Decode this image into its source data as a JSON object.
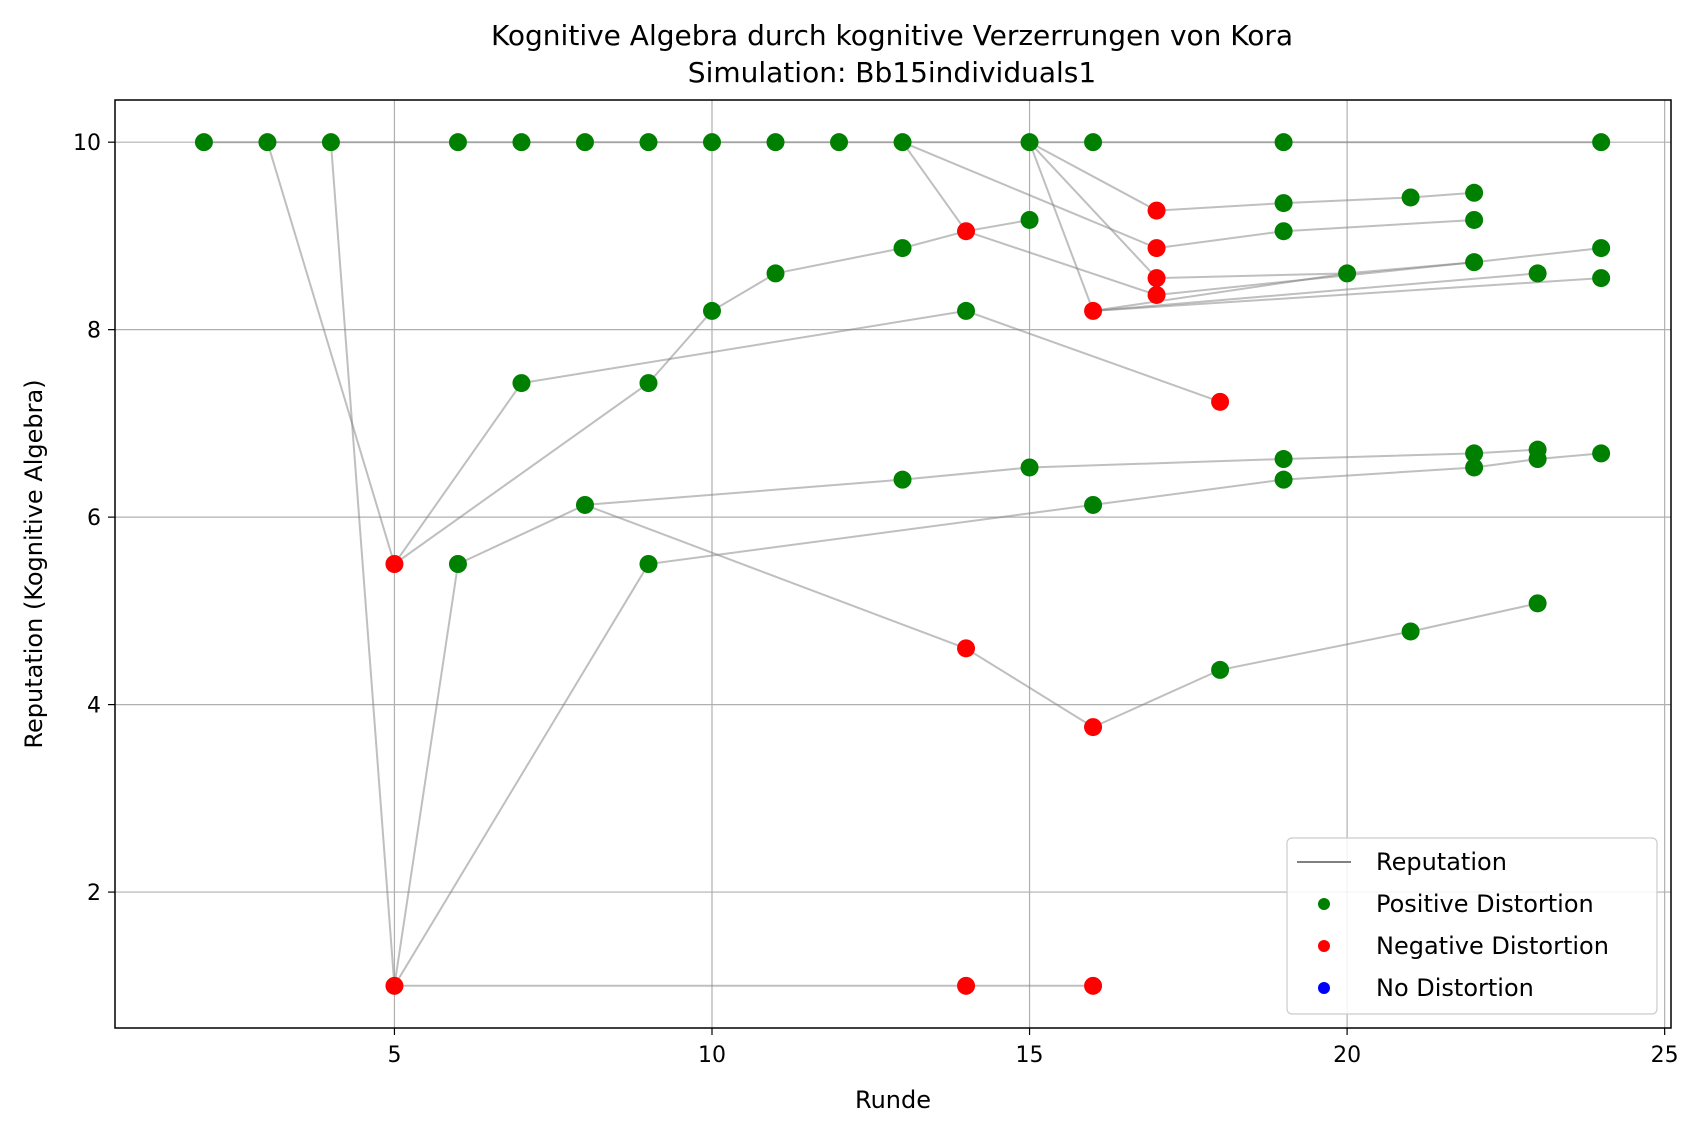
{
  "chart_data": {
    "type": "scatter",
    "title": "Kognitive Algebra durch kognitive Verzerrungen von Kora",
    "subtitle": "Simulation: Bb15individuals1",
    "xlabel": "Runde",
    "ylabel": "Reputation (Kognitive Algebra)",
    "xlim": [
      0.6,
      25.1
    ],
    "ylim": [
      0.55,
      10.45
    ],
    "xticks": [
      5,
      10,
      15,
      20,
      25
    ],
    "yticks": [
      2,
      4,
      6,
      8,
      10
    ],
    "grid": true,
    "legend_position": "lower right",
    "legend": [
      {
        "label": "Reputation",
        "kind": "line",
        "color": "#808080"
      },
      {
        "label": "Positive Distortion",
        "kind": "marker",
        "color": "#008000"
      },
      {
        "label": "Negative Distortion",
        "kind": "marker",
        "color": "#ff0000"
      },
      {
        "label": "No Distortion",
        "kind": "marker",
        "color": "#0000ff"
      }
    ],
    "colors": {
      "positive": "#008000",
      "negative": "#ff0000",
      "neutral": "#0000ff",
      "line": "#808080"
    },
    "series": [
      {
        "values": [
          [
            2,
            10.0
          ],
          [
            24,
            10.0
          ]
        ]
      },
      {
        "values": [
          [
            3,
            10.0
          ],
          [
            5,
            5.5
          ],
          [
            7,
            7.43
          ],
          [
            14,
            8.2
          ],
          [
            18,
            7.23
          ]
        ]
      },
      {
        "values": [
          [
            4,
            10.0
          ],
          [
            5,
            1.0
          ],
          [
            14,
            1.0
          ],
          [
            16,
            1.0
          ]
        ]
      },
      {
        "values": [
          [
            5,
            5.5
          ],
          [
            9,
            7.43
          ],
          [
            10,
            8.2
          ],
          [
            11,
            8.6
          ],
          [
            13,
            8.87
          ],
          [
            14,
            9.05
          ],
          [
            15,
            9.17
          ]
        ]
      },
      {
        "values": [
          [
            5,
            1.0
          ],
          [
            6,
            5.5
          ],
          [
            8,
            6.13
          ],
          [
            13,
            6.4
          ],
          [
            15,
            6.53
          ],
          [
            19,
            6.62
          ],
          [
            22,
            6.68
          ],
          [
            23,
            6.72
          ]
        ]
      },
      {
        "values": [
          [
            5,
            1.0
          ],
          [
            9,
            5.5
          ],
          [
            16,
            6.13
          ],
          [
            19,
            6.4
          ],
          [
            22,
            6.53
          ],
          [
            23,
            6.62
          ],
          [
            24,
            6.68
          ]
        ]
      },
      {
        "values": [
          [
            8,
            6.13
          ],
          [
            14,
            4.6
          ],
          [
            16,
            3.76
          ],
          [
            18,
            4.37
          ],
          [
            21,
            4.78
          ],
          [
            23,
            5.08
          ]
        ]
      },
      {
        "values": [
          [
            13,
            10.0
          ],
          [
            14,
            9.05
          ],
          [
            17,
            8.37
          ],
          [
            22,
            8.72
          ],
          [
            24,
            8.87
          ]
        ]
      },
      {
        "values": [
          [
            13,
            10.0
          ],
          [
            17,
            8.87
          ],
          [
            19,
            9.05
          ],
          [
            22,
            9.17
          ]
        ]
      },
      {
        "values": [
          [
            15,
            10.0
          ],
          [
            16,
            8.2
          ],
          [
            20,
            8.6
          ],
          [
            22,
            8.72
          ]
        ]
      },
      {
        "values": [
          [
            16,
            8.2
          ],
          [
            23,
            8.6
          ]
        ]
      },
      {
        "values": [
          [
            16,
            8.2
          ],
          [
            24,
            8.55
          ]
        ]
      },
      {
        "values": [
          [
            15,
            10.0
          ],
          [
            17,
            9.27
          ],
          [
            19,
            9.35
          ],
          [
            21,
            9.41
          ],
          [
            22,
            9.46
          ]
        ]
      },
      {
        "values": [
          [
            15,
            10.0
          ],
          [
            17,
            8.55
          ],
          [
            20,
            8.6
          ]
        ]
      }
    ],
    "points": [
      {
        "x": 2,
        "y": 10.0,
        "distortion": "positive"
      },
      {
        "x": 3,
        "y": 10.0,
        "distortion": "positive"
      },
      {
        "x": 4,
        "y": 10.0,
        "distortion": "positive"
      },
      {
        "x": 6,
        "y": 10.0,
        "distortion": "positive"
      },
      {
        "x": 7,
        "y": 10.0,
        "distortion": "positive"
      },
      {
        "x": 8,
        "y": 10.0,
        "distortion": "positive"
      },
      {
        "x": 9,
        "y": 10.0,
        "distortion": "positive"
      },
      {
        "x": 10,
        "y": 10.0,
        "distortion": "positive"
      },
      {
        "x": 11,
        "y": 10.0,
        "distortion": "positive"
      },
      {
        "x": 12,
        "y": 10.0,
        "distortion": "positive"
      },
      {
        "x": 13,
        "y": 10.0,
        "distortion": "positive"
      },
      {
        "x": 15,
        "y": 10.0,
        "distortion": "positive"
      },
      {
        "x": 16,
        "y": 10.0,
        "distortion": "positive"
      },
      {
        "x": 19,
        "y": 10.0,
        "distortion": "positive"
      },
      {
        "x": 24,
        "y": 10.0,
        "distortion": "positive"
      },
      {
        "x": 17,
        "y": 9.27,
        "distortion": "negative"
      },
      {
        "x": 19,
        "y": 9.35,
        "distortion": "positive"
      },
      {
        "x": 21,
        "y": 9.41,
        "distortion": "positive"
      },
      {
        "x": 22,
        "y": 9.46,
        "distortion": "positive"
      },
      {
        "x": 14,
        "y": 9.05,
        "distortion": "negative"
      },
      {
        "x": 15,
        "y": 9.17,
        "distortion": "positive"
      },
      {
        "x": 17,
        "y": 8.87,
        "distortion": "negative"
      },
      {
        "x": 19,
        "y": 9.05,
        "distortion": "positive"
      },
      {
        "x": 22,
        "y": 9.17,
        "distortion": "positive"
      },
      {
        "x": 13,
        "y": 8.87,
        "distortion": "positive"
      },
      {
        "x": 24,
        "y": 8.87,
        "distortion": "positive"
      },
      {
        "x": 11,
        "y": 8.6,
        "distortion": "positive"
      },
      {
        "x": 17,
        "y": 8.55,
        "distortion": "negative"
      },
      {
        "x": 17,
        "y": 8.37,
        "distortion": "negative"
      },
      {
        "x": 20,
        "y": 8.6,
        "distortion": "positive"
      },
      {
        "x": 22,
        "y": 8.72,
        "distortion": "positive"
      },
      {
        "x": 23,
        "y": 8.6,
        "distortion": "positive"
      },
      {
        "x": 24,
        "y": 8.55,
        "distortion": "positive"
      },
      {
        "x": 10,
        "y": 8.2,
        "distortion": "positive"
      },
      {
        "x": 14,
        "y": 8.2,
        "distortion": "positive"
      },
      {
        "x": 16,
        "y": 8.2,
        "distortion": "negative"
      },
      {
        "x": 7,
        "y": 7.43,
        "distortion": "positive"
      },
      {
        "x": 9,
        "y": 7.43,
        "distortion": "positive"
      },
      {
        "x": 18,
        "y": 7.23,
        "distortion": "negative"
      },
      {
        "x": 13,
        "y": 6.4,
        "distortion": "positive"
      },
      {
        "x": 15,
        "y": 6.53,
        "distortion": "positive"
      },
      {
        "x": 19,
        "y": 6.62,
        "distortion": "positive"
      },
      {
        "x": 19,
        "y": 6.4,
        "distortion": "positive"
      },
      {
        "x": 22,
        "y": 6.68,
        "distortion": "positive"
      },
      {
        "x": 22,
        "y": 6.53,
        "distortion": "positive"
      },
      {
        "x": 23,
        "y": 6.72,
        "distortion": "positive"
      },
      {
        "x": 23,
        "y": 6.62,
        "distortion": "positive"
      },
      {
        "x": 24,
        "y": 6.68,
        "distortion": "positive"
      },
      {
        "x": 8,
        "y": 6.13,
        "distortion": "positive"
      },
      {
        "x": 16,
        "y": 6.13,
        "distortion": "positive"
      },
      {
        "x": 5,
        "y": 5.5,
        "distortion": "negative"
      },
      {
        "x": 6,
        "y": 5.5,
        "distortion": "positive"
      },
      {
        "x": 9,
        "y": 5.5,
        "distortion": "positive"
      },
      {
        "x": 23,
        "y": 5.08,
        "distortion": "positive"
      },
      {
        "x": 21,
        "y": 4.78,
        "distortion": "positive"
      },
      {
        "x": 14,
        "y": 4.6,
        "distortion": "negative"
      },
      {
        "x": 18,
        "y": 4.37,
        "distortion": "positive"
      },
      {
        "x": 16,
        "y": 3.76,
        "distortion": "negative"
      },
      {
        "x": 5,
        "y": 1.0,
        "distortion": "negative"
      },
      {
        "x": 14,
        "y": 1.0,
        "distortion": "negative"
      },
      {
        "x": 16,
        "y": 1.0,
        "distortion": "negative"
      }
    ]
  }
}
